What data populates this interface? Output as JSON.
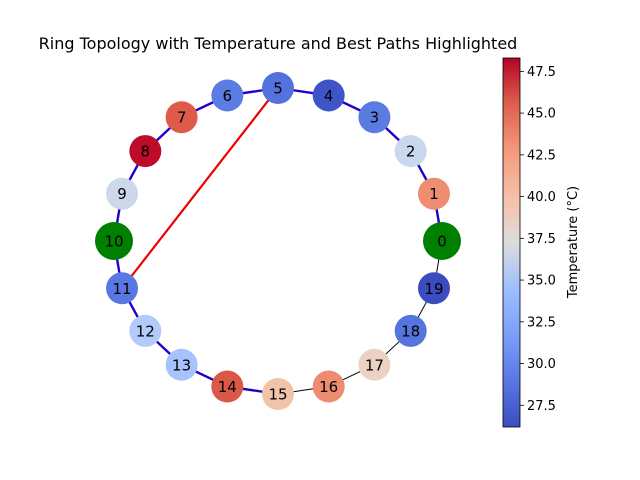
{
  "figure": {
    "title": "Ring Topology with Temperature and Best Paths Highlighted"
  },
  "colorbar": {
    "label": "Temperature (°C)",
    "min": 26.2,
    "max": 48.3,
    "colormap": "coolwarm",
    "ticks": [
      "27.5",
      "30.0",
      "32.5",
      "35.0",
      "37.5",
      "40.0",
      "42.5",
      "45.0",
      "47.5"
    ]
  },
  "colors": {
    "ring_edge": "#2200cc",
    "best_path": "#ee0000",
    "thin_edge": "#000000",
    "endpoint_node": "#008000"
  },
  "nodes": [
    {
      "id": "0",
      "color": "#008000",
      "endpoint": true
    },
    {
      "id": "1",
      "color": "#ee8d6f"
    },
    {
      "id": "2",
      "color": "#c9d7ef"
    },
    {
      "id": "3",
      "color": "#5a7be0"
    },
    {
      "id": "4",
      "color": "#3f54c9"
    },
    {
      "id": "5",
      "color": "#5472dd"
    },
    {
      "id": "6",
      "color": "#5b7ce2"
    },
    {
      "id": "7",
      "color": "#df5b49"
    },
    {
      "id": "8",
      "color": "#be0b27"
    },
    {
      "id": "9",
      "color": "#cdd8ea"
    },
    {
      "id": "10",
      "color": "#008000",
      "endpoint": true
    },
    {
      "id": "11",
      "color": "#5977e0"
    },
    {
      "id": "12",
      "color": "#b2cbfb"
    },
    {
      "id": "13",
      "color": "#a6c3fd"
    },
    {
      "id": "14",
      "color": "#d95847"
    },
    {
      "id": "15",
      "color": "#f1c4aa"
    },
    {
      "id": "16",
      "color": "#ee8c70"
    },
    {
      "id": "17",
      "color": "#ecd2c2"
    },
    {
      "id": "18",
      "color": "#5674de"
    },
    {
      "id": "19",
      "color": "#3b4cc0"
    }
  ],
  "edges": [
    {
      "from": "0",
      "to": "1",
      "style": "ring"
    },
    {
      "from": "1",
      "to": "2",
      "style": "ring"
    },
    {
      "from": "2",
      "to": "3",
      "style": "ring"
    },
    {
      "from": "3",
      "to": "4",
      "style": "ring"
    },
    {
      "from": "4",
      "to": "5",
      "style": "ring"
    },
    {
      "from": "5",
      "to": "6",
      "style": "ring"
    },
    {
      "from": "6",
      "to": "7",
      "style": "ring"
    },
    {
      "from": "7",
      "to": "8",
      "style": "ring"
    },
    {
      "from": "8",
      "to": "9",
      "style": "ring"
    },
    {
      "from": "9",
      "to": "10",
      "style": "ring"
    },
    {
      "from": "10",
      "to": "11",
      "style": "ring"
    },
    {
      "from": "11",
      "to": "12",
      "style": "ring"
    },
    {
      "from": "12",
      "to": "13",
      "style": "ring"
    },
    {
      "from": "13",
      "to": "14",
      "style": "ring"
    },
    {
      "from": "14",
      "to": "15",
      "style": "ring"
    },
    {
      "from": "15",
      "to": "16",
      "style": "thin"
    },
    {
      "from": "16",
      "to": "17",
      "style": "thin"
    },
    {
      "from": "17",
      "to": "18",
      "style": "thin"
    },
    {
      "from": "18",
      "to": "19",
      "style": "thin"
    },
    {
      "from": "19",
      "to": "0",
      "style": "thin"
    },
    {
      "from": "5",
      "to": "11",
      "style": "best"
    }
  ]
}
